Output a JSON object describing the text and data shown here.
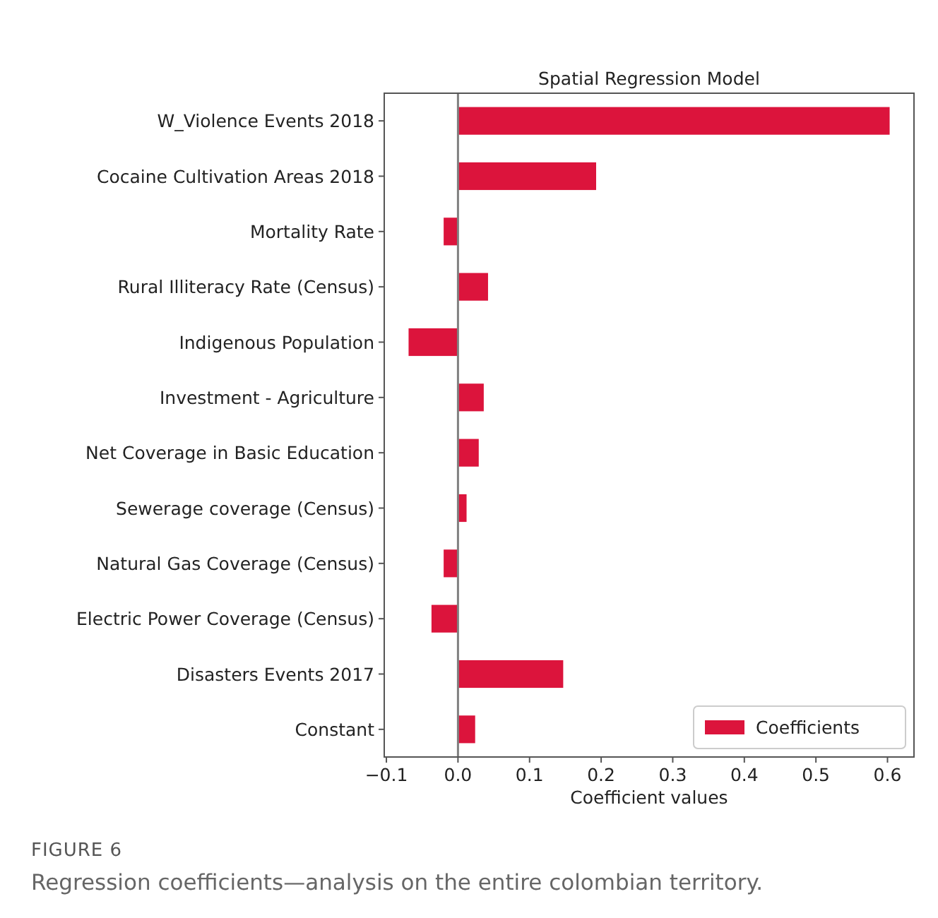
{
  "chart_data": {
    "type": "bar",
    "orientation": "horizontal",
    "title": "Spatial Regression Model",
    "xlabel": "Coefficient values",
    "categories": [
      "W_Violence Events 2018",
      "Cocaine Cultivation Areas 2018",
      "Mortality Rate",
      "Rural Illiteracy Rate (Census)",
      "Indigenous Population",
      "Investment - Agriculture",
      "Net Coverage in Basic Education",
      "Sewerage coverage (Census)",
      "Natural Gas Coverage (Census)",
      "Electric Power Coverage (Census)",
      "Disasters Events 2017",
      "Constant"
    ],
    "series": [
      {
        "name": "Coefficients",
        "color": "#dc143c",
        "values": [
          0.603,
          0.193,
          -0.02,
          0.042,
          -0.069,
          0.036,
          0.029,
          0.012,
          -0.02,
          -0.037,
          0.147,
          0.024
        ]
      }
    ],
    "xlim": [
      -0.103,
      0.637
    ],
    "xticks": [
      {
        "value": -0.1,
        "label": "−0.1"
      },
      {
        "value": 0,
        "label": "0.0"
      },
      {
        "value": 0.1,
        "label": "0.1"
      },
      {
        "value": 0.2,
        "label": "0.2"
      },
      {
        "value": 0.3,
        "label": "0.3"
      },
      {
        "value": 0.4,
        "label": "0.4"
      },
      {
        "value": 0.5,
        "label": "0.5"
      },
      {
        "value": 0.6,
        "label": "0.6"
      }
    ],
    "ref_lines": [
      {
        "axis": "x",
        "value": 0,
        "color": "#808080"
      }
    ],
    "legend": "bottom right",
    "grid": false,
    "annotations": [
      "FIGURE 6",
      "Regression coefficients—analysis on the entire colombian territory."
    ]
  }
}
